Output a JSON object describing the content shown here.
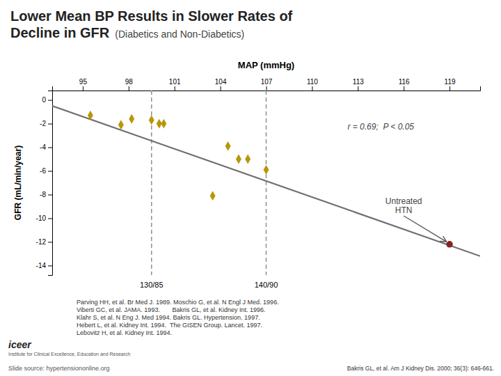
{
  "chart_data": {
    "type": "scatter",
    "title": "Lower Mean BP Results in Slower Rates of\nDecline in GFR",
    "subtitle": "(Diabetics and Non-Diabetics)",
    "x_label": "MAP (mmHg)",
    "y_label": "GFR (mL/min/year)",
    "xlim": [
      93,
      121
    ],
    "ylim": [
      -14.8,
      0.8
    ],
    "xticks": [
      95,
      98,
      101,
      104,
      107,
      110,
      113,
      116,
      119
    ],
    "yticks": [
      0,
      -2,
      -4,
      -6,
      -8,
      -10,
      -12,
      -14
    ],
    "series": [
      {
        "type": "scatter",
        "marker": "diamond",
        "color": "#b8960c",
        "x": [
          95.5,
          97.5,
          98.2,
          99.5,
          100.0,
          100.3,
          104.5,
          105.2,
          105.8,
          107.0,
          103.5
        ],
        "values": [
          -1.3,
          -2.1,
          -1.6,
          -1.7,
          -2.0,
          -2.0,
          -3.9,
          -5.0,
          -5.0,
          -5.9,
          -8.1
        ]
      },
      {
        "type": "scatter",
        "marker": "circle",
        "color": "#8b2020",
        "x": [
          119.0
        ],
        "values": [
          -12.2
        ]
      },
      {
        "type": "line",
        "line_style": "solid",
        "color": "#707070",
        "x": [
          93,
          121
        ],
        "values": [
          -0.5,
          -13.2
        ]
      }
    ],
    "vlines": [
      {
        "value": 99.5,
        "label": "130/85",
        "color": "#909090",
        "line_style": "dashed"
      },
      {
        "value": 107.0,
        "label": "140/90",
        "color": "#909090",
        "line_style": "dashed"
      }
    ],
    "annotations": [
      {
        "text": "r = 0.69;  P < 0.05",
        "x": 114.5,
        "y": -2.3
      },
      {
        "text": "Untreated\nHTN",
        "x": 116.0,
        "y": -9.8,
        "arrow_to": [
          119.0,
          -12.2
        ]
      }
    ],
    "references": "Parving HH, et al. Br Med J. 1989. Moschio G, et al. N Engl J Med. 1996.\nViberti GC, et al. JAMA. 1993.       Bakris GL, et al. Kidney Int. 1996.\nKlahr S, et al. N Eng J. Med 1994. Bakris GL. Hypertension. 1997.\nHebert L, et al. Kidney Int. 1994.  The GISEN Group. Lancet. 1997.\nLebovitz H, et al. Kidney Int. 1994.",
    "footer": "Bakris GL, et al. Am J Kidney Dis. 2000; 36(3): 646-661.",
    "source": "Slide source: hypertensiononline.org",
    "logo": [
      "iceer",
      "Institute for Clinical Excellence, Education and Research"
    ]
  }
}
